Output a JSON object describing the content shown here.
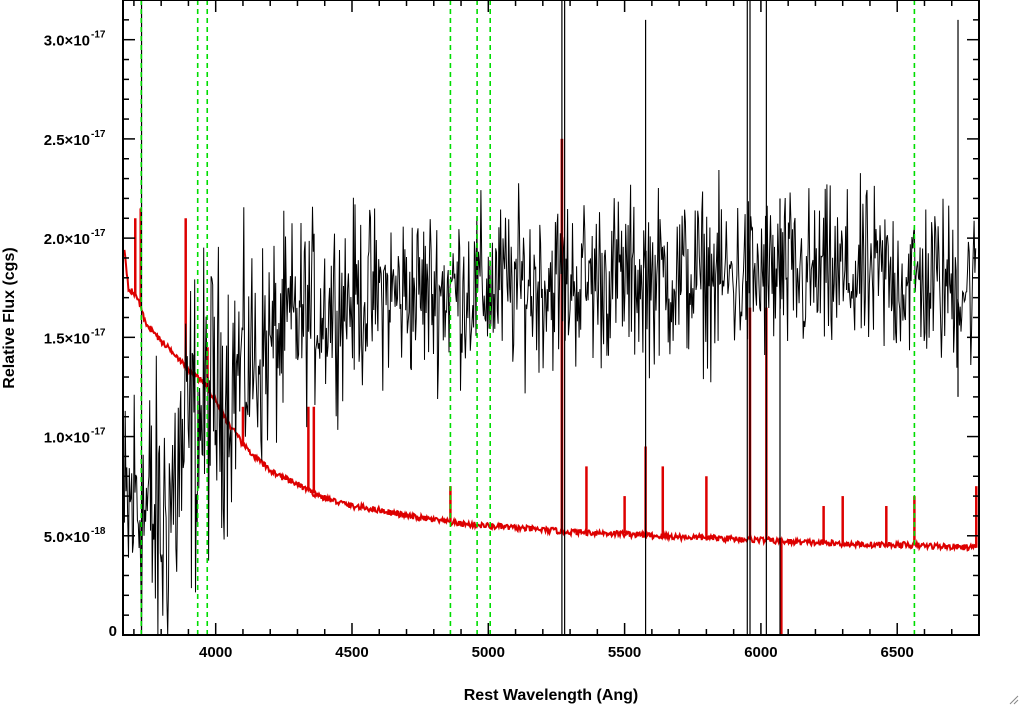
{
  "chart_data": {
    "type": "line",
    "xlabel": "Rest Wavelength (Ang)",
    "ylabel": "Relative Flux (cgs)",
    "xlim": [
      3660,
      6800
    ],
    "ylim": [
      0,
      3.2e-17
    ],
    "x_ticks": [
      {
        "value": 4000,
        "label": "4000"
      },
      {
        "value": 4500,
        "label": "4500"
      },
      {
        "value": 5000,
        "label": "5000"
      },
      {
        "value": 5500,
        "label": "5500"
      },
      {
        "value": 6000,
        "label": "6000"
      },
      {
        "value": 6500,
        "label": "6500"
      }
    ],
    "y_ticks": [
      {
        "value": 0,
        "mantissa": "0",
        "exponent": ""
      },
      {
        "value": 5e-18,
        "mantissa": "5.0×10",
        "exponent": "-18"
      },
      {
        "value": 1e-17,
        "mantissa": "1.0×10",
        "exponent": "-17"
      },
      {
        "value": 1.5e-17,
        "mantissa": "1.5×10",
        "exponent": "-17"
      },
      {
        "value": 2e-17,
        "mantissa": "2.0×10",
        "exponent": "-17"
      },
      {
        "value": 2.5e-17,
        "mantissa": "2.5×10",
        "exponent": "-17"
      },
      {
        "value": 3e-17,
        "mantissa": "3.0×10",
        "exponent": "-17"
      }
    ],
    "x_minor_step": 100,
    "y_minor_step": 1e-18,
    "grid": false,
    "colors": {
      "observed": "#000000",
      "model": "#dd0000",
      "line_markers": "#00dd00"
    },
    "series": [
      {
        "style": "noisy",
        "color": "#000000",
        "x_start": 3665,
        "x_end": 6790,
        "x_step": 3,
        "baseline": [
          [
            3665,
            5e-18
          ],
          [
            3700,
            7e-18
          ],
          [
            3800,
            5e-18
          ],
          [
            3900,
            1e-17
          ],
          [
            4000,
            1.2e-17
          ],
          [
            4100,
            1.35e-17
          ],
          [
            4200,
            1.45e-17
          ],
          [
            4300,
            1.6e-17
          ],
          [
            4500,
            1.7e-17
          ],
          [
            5000,
            1.75e-17
          ],
          [
            5500,
            1.8e-17
          ],
          [
            6000,
            1.8e-17
          ],
          [
            6500,
            1.8e-17
          ],
          [
            6790,
            1.75e-17
          ]
        ],
        "noise": [
          [
            3665,
            6e-18
          ],
          [
            3900,
            7e-18
          ],
          [
            4100,
            5e-18
          ],
          [
            4300,
            4e-18
          ],
          [
            4600,
            3.5e-18
          ],
          [
            5500,
            3.5e-18
          ],
          [
            6790,
            3.5e-18
          ]
        ],
        "spikes": [
          {
            "x": 3728,
            "y_low": 0,
            "y_high": 3.2e-17
          },
          {
            "x": 5270,
            "y_low": 0,
            "y_high": 3.2e-17
          },
          {
            "x": 5280,
            "y_low": 0,
            "y_high": 3.2e-17
          },
          {
            "x": 5577,
            "y_low": 0,
            "y_high": 3.1e-17
          },
          {
            "x": 5950,
            "y_low": 0,
            "y_high": 3.2e-17
          },
          {
            "x": 5960,
            "y_low": 0,
            "y_high": 3.2e-17
          },
          {
            "x": 6020,
            "y_low": 0,
            "y_high": 3.2e-17
          },
          {
            "x": 6070,
            "y_low": 0,
            "y_high": 2.2e-17
          },
          {
            "x": 6723,
            "y_low": 1.2e-17,
            "y_high": 3.1e-17
          }
        ]
      },
      {
        "style": "smooth",
        "color": "#dd0000",
        "points": [
          [
            3665,
            1.95e-17
          ],
          [
            3680,
            1.75e-17
          ],
          [
            3700,
            1.72e-17
          ],
          [
            3715,
            1.7e-17
          ],
          [
            3740,
            1.58e-17
          ],
          [
            3800,
            1.48e-17
          ],
          [
            3850,
            1.42e-17
          ],
          [
            3900,
            1.33e-17
          ],
          [
            3950,
            1.28e-17
          ],
          [
            4000,
            1.18e-17
          ],
          [
            4050,
            1.06e-17
          ],
          [
            4100,
            9.6e-18
          ],
          [
            4150,
            8.9e-18
          ],
          [
            4200,
            8.3e-18
          ],
          [
            4250,
            7.9e-18
          ],
          [
            4300,
            7.6e-18
          ],
          [
            4350,
            7.2e-18
          ],
          [
            4400,
            6.9e-18
          ],
          [
            4500,
            6.5e-18
          ],
          [
            4600,
            6.3e-18
          ],
          [
            4700,
            6e-18
          ],
          [
            4800,
            5.8e-18
          ],
          [
            4900,
            5.6e-18
          ],
          [
            5000,
            5.5e-18
          ],
          [
            5100,
            5.4e-18
          ],
          [
            5200,
            5.3e-18
          ],
          [
            5300,
            5.2e-18
          ],
          [
            5400,
            5.15e-18
          ],
          [
            5500,
            5.1e-18
          ],
          [
            5600,
            5e-18
          ],
          [
            5700,
            4.95e-18
          ],
          [
            5800,
            4.9e-18
          ],
          [
            5900,
            4.85e-18
          ],
          [
            6000,
            4.8e-18
          ],
          [
            6100,
            4.7e-18
          ],
          [
            6200,
            4.65e-18
          ],
          [
            6300,
            4.6e-18
          ],
          [
            6400,
            4.55e-18
          ],
          [
            6500,
            4.55e-18
          ],
          [
            6600,
            4.5e-18
          ],
          [
            6700,
            4.45e-18
          ],
          [
            6790,
            4.4e-18
          ]
        ],
        "spikes": [
          {
            "x": 3705,
            "y_high": 2.1e-17
          },
          {
            "x": 3725,
            "y_high": 2.15e-17
          },
          {
            "x": 3890,
            "y_high": 2.1e-17
          },
          {
            "x": 3970,
            "y_high": 1.45e-17
          },
          {
            "x": 4100,
            "y_high": 1.15e-17
          },
          {
            "x": 4340,
            "y_high": 1.15e-17
          },
          {
            "x": 4360,
            "y_high": 1.15e-17
          },
          {
            "x": 4861,
            "y_high": 7.5e-18
          },
          {
            "x": 5270,
            "y_high": 2.5e-17
          },
          {
            "x": 5270,
            "y_high": 2.5e-17
          },
          {
            "x": 5360,
            "y_high": 8.5e-18
          },
          {
            "x": 5500,
            "y_high": 7e-18
          },
          {
            "x": 5577,
            "y_high": 9.5e-18
          },
          {
            "x": 5640,
            "y_high": 8.5e-18
          },
          {
            "x": 5800,
            "y_high": 8e-18
          },
          {
            "x": 5960,
            "y_high": 1.65e-17
          },
          {
            "x": 6020,
            "y_high": 1.65e-17
          },
          {
            "x": 6230,
            "y_high": 6.5e-18
          },
          {
            "x": 6300,
            "y_high": 7e-18
          },
          {
            "x": 6460,
            "y_high": 6.5e-18
          },
          {
            "x": 6563,
            "y_high": 7e-18
          },
          {
            "x": 6790,
            "y_high": 7.5e-18
          }
        ],
        "dips": [
          {
            "x": 6075,
            "y_low": 0
          }
        ]
      }
    ],
    "vlines": [
      3727,
      3934,
      3969,
      4861,
      4959,
      5007,
      6563
    ]
  }
}
